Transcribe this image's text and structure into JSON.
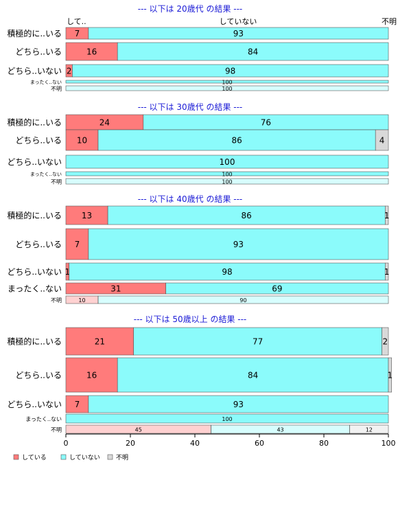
{
  "colors": {
    "している": "#ff7b7b",
    "していない": "#8bfbfb",
    "不明": "#d9d9d9"
  },
  "header_labels": {
    "left": "して..",
    "middle": "していない",
    "right": "不明"
  },
  "legend": [
    "している",
    "していない",
    "不明"
  ],
  "chart_data": {
    "type": "bar",
    "stacked": "horizontal-percent",
    "xlim": [
      0,
      100
    ],
    "x_ticks": [
      0,
      20,
      40,
      60,
      80,
      100
    ],
    "series_names": [
      "している",
      "していない",
      "不明"
    ],
    "panels": [
      {
        "title": "--- 以下は 20歳代 の結果 ---",
        "rows": [
          {
            "label": "積極的に..いる",
            "values": [
              7,
              93,
              0
            ],
            "labels": [
              "7",
              "93",
              ""
            ]
          },
          {
            "label": "どちら..いる",
            "values": [
              16,
              84,
              0
            ],
            "labels": [
              "16",
              "84",
              ""
            ]
          },
          {
            "label": "どちら..いない",
            "values": [
              2,
              98,
              0
            ],
            "labels": [
              "2",
              "98",
              ""
            ]
          },
          {
            "label": "まったく..ない",
            "values": [
              0,
              100,
              0
            ],
            "labels": [
              "",
              "100",
              ""
            ]
          },
          {
            "label": "不明",
            "values": [
              0,
              100,
              0
            ],
            "labels": [
              "",
              "100",
              ""
            ]
          }
        ]
      },
      {
        "title": "--- 以下は 30歳代 の結果 ---",
        "rows": [
          {
            "label": "積極的に..いる",
            "values": [
              24,
              76,
              0
            ],
            "labels": [
              "24",
              "76",
              ""
            ]
          },
          {
            "label": "どちら..いる",
            "values": [
              10,
              86,
              4
            ],
            "labels": [
              "10",
              "86",
              "4"
            ]
          },
          {
            "label": "どちら..いない",
            "values": [
              0,
              100,
              0
            ],
            "labels": [
              "",
              "100",
              ""
            ]
          },
          {
            "label": "まったく..ない",
            "values": [
              0,
              100,
              0
            ],
            "labels": [
              "",
              "100",
              ""
            ]
          },
          {
            "label": "不明",
            "values": [
              0,
              100,
              0
            ],
            "labels": [
              "",
              "100",
              ""
            ]
          }
        ]
      },
      {
        "title": "--- 以下は 40歳代 の結果 ---",
        "rows": [
          {
            "label": "積極的に..いる",
            "values": [
              13,
              86,
              1
            ],
            "labels": [
              "13",
              "86",
              "1"
            ]
          },
          {
            "label": "どちら..いる",
            "values": [
              7,
              93,
              0
            ],
            "labels": [
              "7",
              "93",
              ""
            ]
          },
          {
            "label": "どちら..いない",
            "values": [
              1,
              98,
              1
            ],
            "labels": [
              "1",
              "98",
              "1"
            ]
          },
          {
            "label": "まったく..ない",
            "values": [
              31,
              69,
              0
            ],
            "labels": [
              "31",
              "69",
              ""
            ]
          },
          {
            "label": "不明",
            "values": [
              10,
              90,
              0
            ],
            "labels": [
              "10",
              "90",
              ""
            ]
          }
        ]
      },
      {
        "title": "--- 以下は 50歳以上 の結果 ---",
        "rows": [
          {
            "label": "積極的に..いる",
            "values": [
              21,
              77,
              2
            ],
            "labels": [
              "21",
              "77",
              "2"
            ]
          },
          {
            "label": "どちら..いる",
            "values": [
              16,
              84,
              1
            ],
            "labels": [
              "16",
              "84",
              "1"
            ]
          },
          {
            "label": "どちら..いない",
            "values": [
              7,
              93,
              0
            ],
            "labels": [
              "7",
              "93",
              ""
            ]
          },
          {
            "label": "まったく..ない",
            "values": [
              0,
              100,
              0
            ],
            "labels": [
              "",
              "100",
              ""
            ]
          },
          {
            "label": "不明",
            "values": [
              45,
              43,
              12
            ],
            "labels": [
              "45",
              "43",
              "12"
            ]
          }
        ]
      }
    ]
  }
}
